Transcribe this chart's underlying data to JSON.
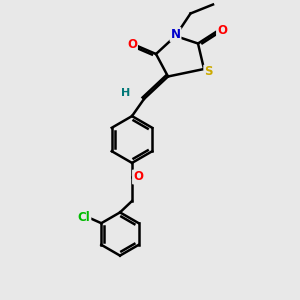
{
  "bg_color": "#e8e8e8",
  "atom_colors": {
    "C": "#000000",
    "N": "#0000cc",
    "O": "#ff0000",
    "S": "#ccaa00",
    "Cl": "#00bb00",
    "H": "#007777"
  },
  "bond_color": "#000000",
  "bond_width": 1.8,
  "figsize": [
    3.0,
    3.0
  ],
  "dpi": 100
}
